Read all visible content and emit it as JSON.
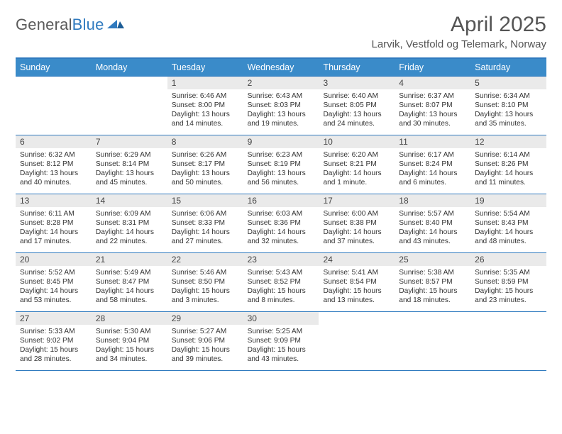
{
  "logo": {
    "word1": "General",
    "word2": "Blue"
  },
  "title": "April 2025",
  "location": "Larvik, Vestfold og Telemark, Norway",
  "colors": {
    "header_bg": "#3a8bc9",
    "border": "#2f7abf",
    "daynum_bg": "#eaeaea",
    "text": "#333333"
  },
  "weekdays": [
    "Sunday",
    "Monday",
    "Tuesday",
    "Wednesday",
    "Thursday",
    "Friday",
    "Saturday"
  ],
  "weeks": [
    [
      {
        "day": "",
        "lines": []
      },
      {
        "day": "",
        "lines": []
      },
      {
        "day": "1",
        "lines": [
          "Sunrise: 6:46 AM",
          "Sunset: 8:00 PM",
          "Daylight: 13 hours",
          "and 14 minutes."
        ]
      },
      {
        "day": "2",
        "lines": [
          "Sunrise: 6:43 AM",
          "Sunset: 8:03 PM",
          "Daylight: 13 hours",
          "and 19 minutes."
        ]
      },
      {
        "day": "3",
        "lines": [
          "Sunrise: 6:40 AM",
          "Sunset: 8:05 PM",
          "Daylight: 13 hours",
          "and 24 minutes."
        ]
      },
      {
        "day": "4",
        "lines": [
          "Sunrise: 6:37 AM",
          "Sunset: 8:07 PM",
          "Daylight: 13 hours",
          "and 30 minutes."
        ]
      },
      {
        "day": "5",
        "lines": [
          "Sunrise: 6:34 AM",
          "Sunset: 8:10 PM",
          "Daylight: 13 hours",
          "and 35 minutes."
        ]
      }
    ],
    [
      {
        "day": "6",
        "lines": [
          "Sunrise: 6:32 AM",
          "Sunset: 8:12 PM",
          "Daylight: 13 hours",
          "and 40 minutes."
        ]
      },
      {
        "day": "7",
        "lines": [
          "Sunrise: 6:29 AM",
          "Sunset: 8:14 PM",
          "Daylight: 13 hours",
          "and 45 minutes."
        ]
      },
      {
        "day": "8",
        "lines": [
          "Sunrise: 6:26 AM",
          "Sunset: 8:17 PM",
          "Daylight: 13 hours",
          "and 50 minutes."
        ]
      },
      {
        "day": "9",
        "lines": [
          "Sunrise: 6:23 AM",
          "Sunset: 8:19 PM",
          "Daylight: 13 hours",
          "and 56 minutes."
        ]
      },
      {
        "day": "10",
        "lines": [
          "Sunrise: 6:20 AM",
          "Sunset: 8:21 PM",
          "Daylight: 14 hours",
          "and 1 minute."
        ]
      },
      {
        "day": "11",
        "lines": [
          "Sunrise: 6:17 AM",
          "Sunset: 8:24 PM",
          "Daylight: 14 hours",
          "and 6 minutes."
        ]
      },
      {
        "day": "12",
        "lines": [
          "Sunrise: 6:14 AM",
          "Sunset: 8:26 PM",
          "Daylight: 14 hours",
          "and 11 minutes."
        ]
      }
    ],
    [
      {
        "day": "13",
        "lines": [
          "Sunrise: 6:11 AM",
          "Sunset: 8:28 PM",
          "Daylight: 14 hours",
          "and 17 minutes."
        ]
      },
      {
        "day": "14",
        "lines": [
          "Sunrise: 6:09 AM",
          "Sunset: 8:31 PM",
          "Daylight: 14 hours",
          "and 22 minutes."
        ]
      },
      {
        "day": "15",
        "lines": [
          "Sunrise: 6:06 AM",
          "Sunset: 8:33 PM",
          "Daylight: 14 hours",
          "and 27 minutes."
        ]
      },
      {
        "day": "16",
        "lines": [
          "Sunrise: 6:03 AM",
          "Sunset: 8:36 PM",
          "Daylight: 14 hours",
          "and 32 minutes."
        ]
      },
      {
        "day": "17",
        "lines": [
          "Sunrise: 6:00 AM",
          "Sunset: 8:38 PM",
          "Daylight: 14 hours",
          "and 37 minutes."
        ]
      },
      {
        "day": "18",
        "lines": [
          "Sunrise: 5:57 AM",
          "Sunset: 8:40 PM",
          "Daylight: 14 hours",
          "and 43 minutes."
        ]
      },
      {
        "day": "19",
        "lines": [
          "Sunrise: 5:54 AM",
          "Sunset: 8:43 PM",
          "Daylight: 14 hours",
          "and 48 minutes."
        ]
      }
    ],
    [
      {
        "day": "20",
        "lines": [
          "Sunrise: 5:52 AM",
          "Sunset: 8:45 PM",
          "Daylight: 14 hours",
          "and 53 minutes."
        ]
      },
      {
        "day": "21",
        "lines": [
          "Sunrise: 5:49 AM",
          "Sunset: 8:47 PM",
          "Daylight: 14 hours",
          "and 58 minutes."
        ]
      },
      {
        "day": "22",
        "lines": [
          "Sunrise: 5:46 AM",
          "Sunset: 8:50 PM",
          "Daylight: 15 hours",
          "and 3 minutes."
        ]
      },
      {
        "day": "23",
        "lines": [
          "Sunrise: 5:43 AM",
          "Sunset: 8:52 PM",
          "Daylight: 15 hours",
          "and 8 minutes."
        ]
      },
      {
        "day": "24",
        "lines": [
          "Sunrise: 5:41 AM",
          "Sunset: 8:54 PM",
          "Daylight: 15 hours",
          "and 13 minutes."
        ]
      },
      {
        "day": "25",
        "lines": [
          "Sunrise: 5:38 AM",
          "Sunset: 8:57 PM",
          "Daylight: 15 hours",
          "and 18 minutes."
        ]
      },
      {
        "day": "26",
        "lines": [
          "Sunrise: 5:35 AM",
          "Sunset: 8:59 PM",
          "Daylight: 15 hours",
          "and 23 minutes."
        ]
      }
    ],
    [
      {
        "day": "27",
        "lines": [
          "Sunrise: 5:33 AM",
          "Sunset: 9:02 PM",
          "Daylight: 15 hours",
          "and 28 minutes."
        ]
      },
      {
        "day": "28",
        "lines": [
          "Sunrise: 5:30 AM",
          "Sunset: 9:04 PM",
          "Daylight: 15 hours",
          "and 34 minutes."
        ]
      },
      {
        "day": "29",
        "lines": [
          "Sunrise: 5:27 AM",
          "Sunset: 9:06 PM",
          "Daylight: 15 hours",
          "and 39 minutes."
        ]
      },
      {
        "day": "30",
        "lines": [
          "Sunrise: 5:25 AM",
          "Sunset: 9:09 PM",
          "Daylight: 15 hours",
          "and 43 minutes."
        ]
      },
      {
        "day": "",
        "lines": []
      },
      {
        "day": "",
        "lines": []
      },
      {
        "day": "",
        "lines": []
      }
    ]
  ]
}
